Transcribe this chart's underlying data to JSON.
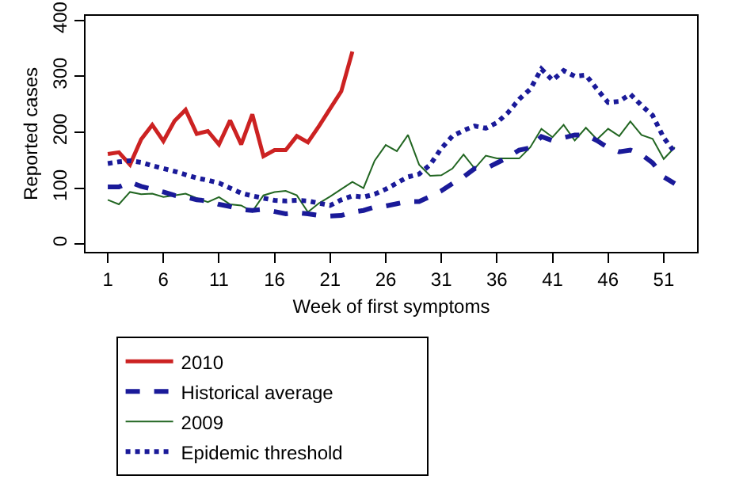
{
  "chart_data": {
    "type": "line",
    "xlabel": "Week of first symptoms",
    "ylabel": "Reported cases",
    "x": [
      1,
      2,
      3,
      4,
      5,
      6,
      7,
      8,
      9,
      10,
      11,
      12,
      13,
      14,
      15,
      16,
      17,
      18,
      19,
      20,
      21,
      22,
      23,
      24,
      25,
      26,
      27,
      28,
      29,
      30,
      31,
      32,
      33,
      34,
      35,
      36,
      37,
      38,
      39,
      40,
      41,
      42,
      43,
      44,
      45,
      46,
      47,
      48,
      49,
      50,
      51,
      52
    ],
    "xlim": [
      -1,
      54
    ],
    "xticks": [
      1,
      6,
      11,
      16,
      21,
      26,
      31,
      36,
      41,
      46,
      51
    ],
    "ylim": [
      -14,
      408
    ],
    "yticks": [
      0,
      100,
      200,
      300,
      400
    ],
    "grid": false,
    "legend": "bottom",
    "marker": "none",
    "series": [
      {
        "name": "2010",
        "color": "#cc2222",
        "line_style": "solid",
        "values": [
          161,
          164,
          142,
          187,
          213,
          184,
          220,
          240,
          197,
          202,
          178,
          221,
          178,
          232,
          157,
          168,
          168,
          193,
          182,
          211,
          242,
          273,
          344,
          null,
          null,
          null,
          null,
          null,
          null,
          null,
          null,
          null,
          null,
          null,
          null,
          null,
          null,
          null,
          null,
          null,
          null,
          null,
          null,
          null,
          null,
          null,
          null,
          null,
          null,
          null,
          null,
          null
        ]
      },
      {
        "name": "2009",
        "color": "#226622",
        "line_style": "solid",
        "values": [
          79,
          71,
          93,
          89,
          90,
          84,
          87,
          90,
          82,
          75,
          84,
          71,
          69,
          58,
          87,
          93,
          95,
          87,
          57,
          73,
          85,
          98,
          111,
          100,
          149,
          177,
          166,
          195,
          142,
          122,
          123,
          135,
          160,
          135,
          158,
          153,
          153,
          153,
          173,
          206,
          191,
          213,
          185,
          208,
          187,
          206,
          193,
          219,
          195,
          188,
          152,
          173
        ]
      },
      {
        "name": "Historical average",
        "color": "#1a1a99",
        "line_style": "dashed",
        "values": [
          102,
          102,
          111,
          103,
          98,
          93,
          87,
          84,
          79,
          77,
          71,
          67,
          62,
          60,
          62,
          58,
          54,
          56,
          54,
          51,
          50,
          51,
          57,
          60,
          66,
          68,
          72,
          76,
          76,
          85,
          95,
          108,
          120,
          135,
          135,
          145,
          155,
          168,
          172,
          192,
          185,
          190,
          195,
          195,
          185,
          172,
          165,
          168,
          160,
          145,
          120,
          108
        ]
      },
      {
        "name": "Epidemic threshold",
        "color": "#1a1a99",
        "line_style": "dotted",
        "values": [
          144,
          147,
          149,
          146,
          140,
          135,
          130,
          124,
          118,
          114,
          109,
          100,
          91,
          86,
          82,
          78,
          77,
          78,
          77,
          73,
          69,
          79,
          86,
          84,
          89,
          98,
          109,
          120,
          125,
          142,
          171,
          193,
          203,
          211,
          207,
          217,
          235,
          259,
          277,
          313,
          293,
          310,
          300,
          302,
          277,
          253,
          255,
          268,
          248,
          230,
          190,
          164
        ]
      }
    ]
  }
}
